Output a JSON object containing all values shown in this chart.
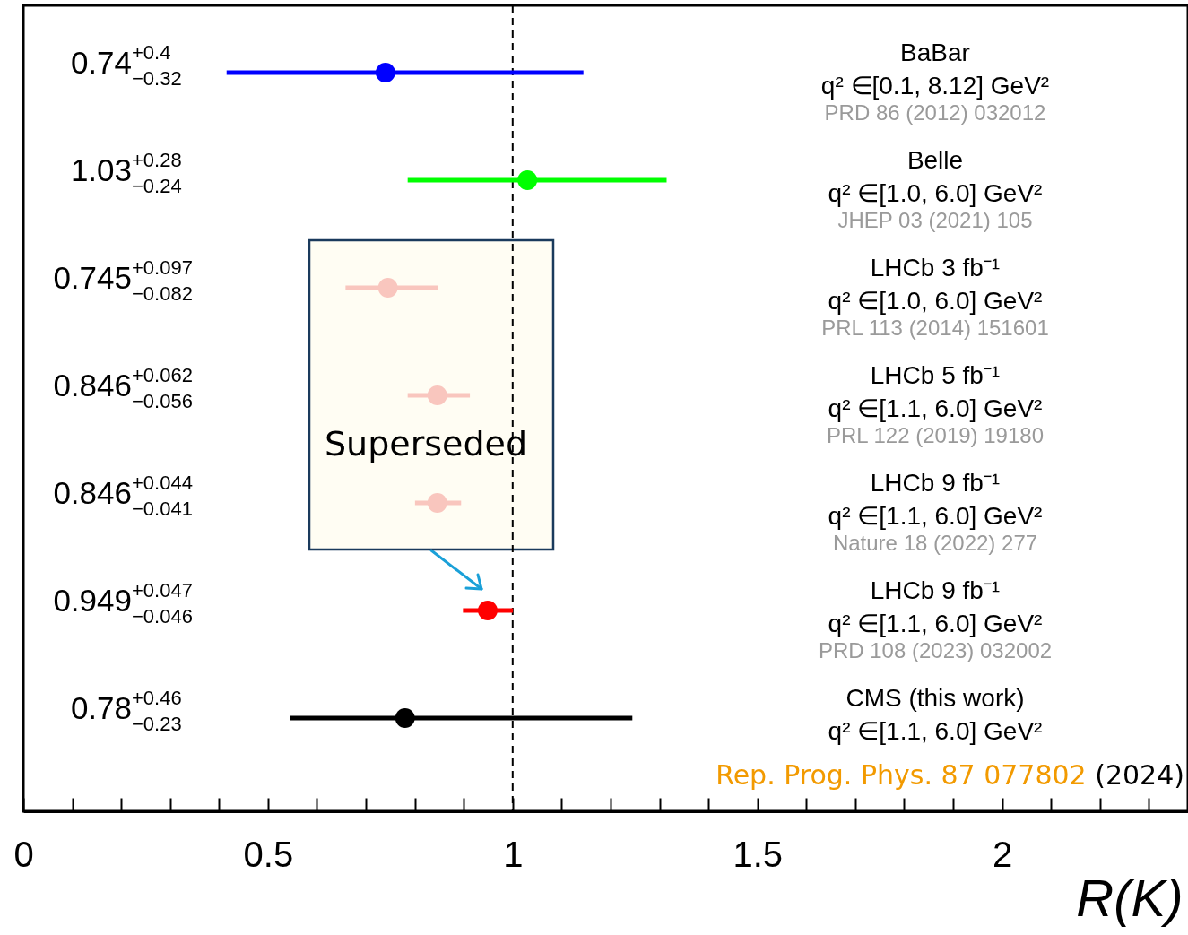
{
  "chart_data": {
    "type": "scatter",
    "orientation": "horizontal",
    "marker": "circle",
    "xlabel": "R(K)",
    "categories": [
      null,
      null,
      null,
      null,
      null,
      null,
      null
    ],
    "values": [
      0.74,
      1.03,
      0.745,
      0.846,
      0.846,
      0.949,
      0.78
    ],
    "colors": [
      "#0000ff",
      "#00ff00",
      "#f9c6be",
      "#f9c6be",
      "#f9c6be",
      "#ff0000",
      "#000000"
    ],
    "errors": [
      [
        0.42,
        1.14
      ],
      [
        0.79,
        1.31
      ],
      [
        0.663,
        0.842
      ],
      [
        0.79,
        0.908
      ],
      [
        0.805,
        0.89
      ],
      [
        0.903,
        0.996
      ],
      [
        0.55,
        1.24
      ]
    ],
    "value_labels": [
      "0.74$^{+0.4}$$_{−0.32}$",
      "1.03$^{+0.28}$$_{−0.24}$",
      "0.745$^{+0.097}$$_{−0.082}$",
      "0.846$^{+0.062}$$_{−0.056}$",
      "0.846$^{+0.044}$$_{−0.041}$",
      "0.949$^{+0.047}$$_{−0.046}$",
      "0.78$^{+0.46}$$_{−0.23}$"
    ],
    "xlim": [
      0,
      2.38
    ],
    "xticks": [
      0,
      {
        "value": 0.1,
        "label": null
      },
      {
        "value": 0.2,
        "label": null
      },
      {
        "value": 0.3,
        "label": null
      },
      {
        "value": 0.4,
        "label": null
      },
      0.5,
      {
        "value": 0.6,
        "label": null
      },
      {
        "value": 0.7,
        "label": null
      },
      {
        "value": 0.8,
        "label": null
      },
      {
        "value": 0.9,
        "label": null
      },
      1,
      {
        "value": 1.1,
        "label": null
      },
      {
        "value": 1.2,
        "label": null
      },
      {
        "value": 1.3,
        "label": null
      },
      {
        "value": 1.4,
        "label": null
      },
      1.5,
      {
        "value": 1.6,
        "label": null
      },
      {
        "value": 1.7,
        "label": null
      },
      {
        "value": 1.8,
        "label": null
      },
      {
        "value": 1.9,
        "label": null
      },
      2,
      {
        "value": 2.1,
        "label": null
      },
      {
        "value": 2.2,
        "label": null
      },
      {
        "value": 2.3,
        "label": null
      }
    ],
    "ref_lines": [
      {
        "axis": "x",
        "value": 1,
        "color": "#000000",
        "line_style": "dashed"
      }
    ],
    "annotations": [
      "BaBar\nq² ∈[0.1, 8.12] GeV²\nPRD 86 (2012) 032012",
      "Belle\nq² ∈[1.0, 6.0] GeV²\nJHEP 03 (2021) 105",
      "LHCb 3 fb⁻¹\nq² ∈[1.0, 6.0] GeV²\nPRL 113 (2014) 151601",
      "LHCb 5 fb⁻¹\nq² ∈[1.1, 6.0] GeV²\nPRL 122 (2019) 19180",
      "LHCb 9 fb⁻¹\nq² ∈[1.1, 6.0] GeV²\nNature 18 (2022) 277",
      "LHCb 9 fb⁻¹\nq² ∈[1.1, 6.0] GeV²\nPRD 108 (2023) 032002",
      "CMS (this work)\nq² ∈[1.1, 6.0] GeV²",
      "Superseded",
      "Rep. Prog. Phys. 87 077802 (2024)"
    ]
  }
}
